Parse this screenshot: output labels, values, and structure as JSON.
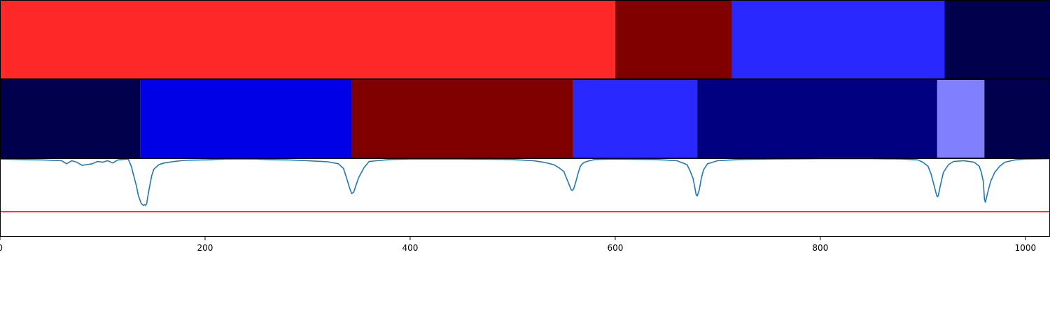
{
  "chart_data": {
    "type": "segmentation-strips-with-line",
    "title": "",
    "xlabel": "",
    "ylabel": "",
    "xlim": [
      0,
      1024
    ],
    "x_ticks": [
      0,
      200,
      400,
      600,
      800,
      1000
    ],
    "tracks": [
      {
        "kind": "segment-strip",
        "segments": [
          {
            "start": 0,
            "end": 600,
            "color": "#ff2828"
          },
          {
            "start": 600,
            "end": 714,
            "color": "#800000"
          },
          {
            "start": 714,
            "end": 921,
            "color": "#2828ff"
          },
          {
            "start": 921,
            "end": 1024,
            "color": "#00004c"
          }
        ]
      },
      {
        "kind": "segment-strip",
        "segments": [
          {
            "start": 0,
            "end": 137,
            "color": "#00004c"
          },
          {
            "start": 137,
            "end": 343,
            "color": "#0000e6"
          },
          {
            "start": 343,
            "end": 559,
            "color": "#800000"
          },
          {
            "start": 559,
            "end": 680,
            "color": "#2828ff"
          },
          {
            "start": 680,
            "end": 914,
            "color": "#000080"
          },
          {
            "start": 914,
            "end": 960,
            "color": "#8080ff"
          },
          {
            "start": 960,
            "end": 1024,
            "color": "#00004c"
          }
        ]
      },
      {
        "kind": "line",
        "ylim": [
          0,
          1
        ],
        "threshold": {
          "value": 0.32,
          "color": "#e01010"
        },
        "series": [
          {
            "color": "#1f77b4",
            "x": [
              0,
              20,
              40,
              60,
              65,
              70,
              75,
              80,
              90,
              95,
              100,
              105,
              110,
              115,
              125,
              128,
              130,
              133,
              135,
              137,
              138,
              140,
              141,
              142,
              143,
              144,
              146,
              148,
              150,
              155,
              160,
              170,
              180,
              200,
              220,
              250,
              260,
              280,
              300,
              320,
              330,
              335,
              338,
              341,
              343,
              345,
              347,
              350,
              355,
              360,
              380,
              400,
              450,
              500,
              520,
              530,
              540,
              545,
              550,
              552,
              554,
              556,
              557,
              558,
              559,
              560,
              562,
              564,
              566,
              568,
              570,
              575,
              580,
              600,
              640,
              660,
              670,
              673,
              676,
              678,
              679,
              680,
              682,
              684,
              686,
              690,
              700,
              720,
              750,
              800,
              850,
              880,
              895,
              900,
              905,
              908,
              911,
              913,
              914,
              915,
              917,
              920,
              925,
              930,
              940,
              950,
              955,
              957,
              959,
              960,
              961,
              963,
              966,
              970,
              975,
              980,
              990,
              1000,
              1024
            ],
            "y": [
              0.99,
              0.985,
              0.98,
              0.97,
              0.93,
              0.97,
              0.95,
              0.91,
              0.93,
              0.96,
              0.95,
              0.97,
              0.94,
              0.98,
              0.99,
              0.9,
              0.8,
              0.65,
              0.52,
              0.45,
              0.42,
              0.4,
              0.41,
              0.4,
              0.42,
              0.5,
              0.65,
              0.78,
              0.86,
              0.92,
              0.94,
              0.96,
              0.975,
              0.98,
              0.99,
              0.99,
              0.985,
              0.98,
              0.97,
              0.955,
              0.93,
              0.87,
              0.75,
              0.62,
              0.55,
              0.57,
              0.65,
              0.76,
              0.88,
              0.96,
              0.985,
              0.99,
              0.99,
              0.985,
              0.97,
              0.95,
              0.92,
              0.88,
              0.83,
              0.76,
              0.7,
              0.63,
              0.6,
              0.59,
              0.6,
              0.63,
              0.72,
              0.82,
              0.9,
              0.93,
              0.95,
              0.97,
              0.985,
              0.99,
              0.985,
              0.97,
              0.92,
              0.84,
              0.74,
              0.6,
              0.53,
              0.52,
              0.6,
              0.75,
              0.85,
              0.93,
              0.97,
              0.985,
              0.99,
              0.995,
              0.995,
              0.99,
              0.98,
              0.95,
              0.9,
              0.8,
              0.65,
              0.55,
              0.51,
              0.52,
              0.65,
              0.82,
              0.92,
              0.96,
              0.97,
              0.95,
              0.9,
              0.82,
              0.7,
              0.48,
              0.44,
              0.55,
              0.7,
              0.82,
              0.9,
              0.95,
              0.98,
              0.99,
              0.995
            ]
          }
        ]
      }
    ]
  }
}
